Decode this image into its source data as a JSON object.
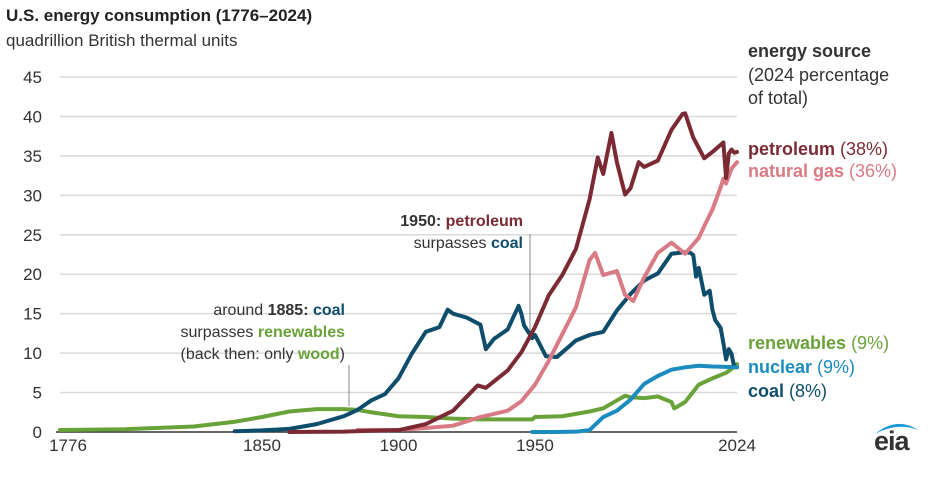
{
  "title": "U.S. energy consumption (1776–2024)",
  "subtitle": "quadrillion British thermal units",
  "legend": {
    "heading": "energy source",
    "note1": "(2024 percentage",
    "note2": "of total)"
  },
  "annotations": {
    "a1885": {
      "year": "around",
      "year_b": "1885:",
      "coal": "coal",
      "line2a": "surpasses",
      "renew": "renewables",
      "line3a": "(back then: only",
      "wood": "wood",
      "line3b": ")"
    },
    "a1950": {
      "year": "1950:",
      "pet": "petroleum",
      "line2a": "surpasses",
      "coal": "coal"
    }
  },
  "logo": "eia",
  "chart_data": {
    "type": "line",
    "title": "U.S. energy consumption (1776–2024)",
    "ylabel": "quadrillion British thermal units",
    "xlim": [
      1776,
      2024
    ],
    "ylim": [
      0,
      45
    ],
    "xticks": [
      1776,
      1850,
      1900,
      1950,
      2024
    ],
    "yticks": [
      0,
      5,
      10,
      15,
      20,
      25,
      30,
      35,
      40,
      45
    ],
    "series": [
      {
        "name": "renewables",
        "pct": "(9%)",
        "color": "#6aa23a",
        "points": [
          [
            1776,
            0.25
          ],
          [
            1800,
            0.35
          ],
          [
            1825,
            0.7
          ],
          [
            1840,
            1.3
          ],
          [
            1850,
            1.9
          ],
          [
            1860,
            2.6
          ],
          [
            1870,
            2.9
          ],
          [
            1880,
            2.9
          ],
          [
            1885,
            2.8
          ],
          [
            1890,
            2.5
          ],
          [
            1900,
            2.0
          ],
          [
            1910,
            1.9
          ],
          [
            1920,
            1.7
          ],
          [
            1930,
            1.6
          ],
          [
            1945,
            1.6
          ],
          [
            1949,
            1.6
          ],
          [
            1950,
            1.9
          ],
          [
            1960,
            2.0
          ],
          [
            1970,
            2.6
          ],
          [
            1975,
            3.0
          ],
          [
            1980,
            4.0
          ],
          [
            1983,
            4.6
          ],
          [
            1985,
            4.4
          ],
          [
            1990,
            4.3
          ],
          [
            1995,
            4.5
          ],
          [
            2000,
            3.8
          ],
          [
            2001,
            3.0
          ],
          [
            2005,
            3.8
          ],
          [
            2010,
            6.0
          ],
          [
            2015,
            6.8
          ],
          [
            2020,
            7.5
          ],
          [
            2022,
            8.0
          ],
          [
            2024,
            8.6
          ]
        ]
      },
      {
        "name": "coal",
        "pct": "(8%)",
        "color": "#0e4d6b",
        "points": [
          [
            1840,
            0.1
          ],
          [
            1850,
            0.2
          ],
          [
            1860,
            0.4
          ],
          [
            1870,
            1.0
          ],
          [
            1880,
            2.0
          ],
          [
            1885,
            2.8
          ],
          [
            1890,
            4.0
          ],
          [
            1895,
            4.8
          ],
          [
            1900,
            6.8
          ],
          [
            1905,
            10
          ],
          [
            1910,
            12.7
          ],
          [
            1915,
            13.3
          ],
          [
            1918,
            15.5
          ],
          [
            1920,
            15.0
          ],
          [
            1925,
            14.5
          ],
          [
            1930,
            13.6
          ],
          [
            1932,
            10.5
          ],
          [
            1935,
            11.8
          ],
          [
            1940,
            13
          ],
          [
            1944,
            16
          ],
          [
            1945,
            15.0
          ],
          [
            1946,
            13.5
          ],
          [
            1949,
            11.9
          ],
          [
            1950,
            12.3
          ],
          [
            1954,
            9.6
          ],
          [
            1958,
            9.5
          ],
          [
            1960,
            10.1
          ],
          [
            1965,
            11.6
          ],
          [
            1970,
            12.3
          ],
          [
            1975,
            12.7
          ],
          [
            1980,
            15.4
          ],
          [
            1985,
            17.5
          ],
          [
            1990,
            19.2
          ],
          [
            1995,
            20.1
          ],
          [
            2000,
            22.6
          ],
          [
            2005,
            22.8
          ],
          [
            2007,
            22.7
          ],
          [
            2008,
            22.4
          ],
          [
            2009,
            19.7
          ],
          [
            2010,
            20.8
          ],
          [
            2012,
            17.4
          ],
          [
            2014,
            17.9
          ],
          [
            2015,
            15.5
          ],
          [
            2016,
            14.2
          ],
          [
            2018,
            13.2
          ],
          [
            2019,
            11.3
          ],
          [
            2020,
            9.2
          ],
          [
            2021,
            10.5
          ],
          [
            2022,
            9.9
          ],
          [
            2023,
            8.2
          ],
          [
            2024,
            8.2
          ]
        ]
      },
      {
        "name": "petroleum",
        "pct": "(38%)",
        "color": "#7b2a33",
        "points": [
          [
            1860,
            0
          ],
          [
            1880,
            0.05
          ],
          [
            1890,
            0.16
          ],
          [
            1900,
            0.23
          ],
          [
            1910,
            1.0
          ],
          [
            1920,
            2.7
          ],
          [
            1929,
            5.9
          ],
          [
            1932,
            5.6
          ],
          [
            1940,
            7.8
          ],
          [
            1945,
            10.1
          ],
          [
            1950,
            13.3
          ],
          [
            1955,
            17.3
          ],
          [
            1960,
            19.9
          ],
          [
            1965,
            23.2
          ],
          [
            1970,
            29.5
          ],
          [
            1973,
            34.8
          ],
          [
            1975,
            32.7
          ],
          [
            1978,
            37.9
          ],
          [
            1980,
            34.2
          ],
          [
            1983,
            30.1
          ],
          [
            1985,
            30.9
          ],
          [
            1988,
            34.2
          ],
          [
            1990,
            33.6
          ],
          [
            1995,
            34.4
          ],
          [
            2000,
            38.3
          ],
          [
            2004,
            40.3
          ],
          [
            2005,
            40.4
          ],
          [
            2008,
            37.3
          ],
          [
            2010,
            36.0
          ],
          [
            2012,
            34.7
          ],
          [
            2015,
            35.5
          ],
          [
            2019,
            36.7
          ],
          [
            2020,
            32.2
          ],
          [
            2021,
            35.3
          ],
          [
            2022,
            35.8
          ],
          [
            2023,
            35.4
          ],
          [
            2024,
            35.5
          ]
        ]
      },
      {
        "name": "natural gas",
        "pct": "(36%)",
        "color": "#d97b84",
        "points": [
          [
            1885,
            0.25
          ],
          [
            1900,
            0.25
          ],
          [
            1910,
            0.5
          ],
          [
            1920,
            0.8
          ],
          [
            1930,
            1.9
          ],
          [
            1940,
            2.7
          ],
          [
            1945,
            3.9
          ],
          [
            1950,
            6.0
          ],
          [
            1955,
            9.0
          ],
          [
            1960,
            12.4
          ],
          [
            1965,
            15.8
          ],
          [
            1970,
            21.8
          ],
          [
            1972,
            22.7
          ],
          [
            1975,
            19.9
          ],
          [
            1980,
            20.4
          ],
          [
            1983,
            17.4
          ],
          [
            1986,
            16.6
          ],
          [
            1990,
            19.6
          ],
          [
            1995,
            22.7
          ],
          [
            2000,
            24.0
          ],
          [
            2005,
            22.6
          ],
          [
            2008,
            23.8
          ],
          [
            2010,
            24.6
          ],
          [
            2012,
            26.1
          ],
          [
            2015,
            28.2
          ],
          [
            2018,
            31.0
          ],
          [
            2019,
            32.1
          ],
          [
            2020,
            31.5
          ],
          [
            2022,
            33.4
          ],
          [
            2024,
            34.2
          ]
        ]
      },
      {
        "name": "nuclear",
        "pct": "(9%)",
        "color": "#1a8cbf",
        "points": [
          [
            1949,
            0
          ],
          [
            1957,
            0
          ],
          [
            1965,
            0.04
          ],
          [
            1970,
            0.24
          ],
          [
            1975,
            1.9
          ],
          [
            1980,
            2.7
          ],
          [
            1985,
            4.1
          ],
          [
            1990,
            6.1
          ],
          [
            1995,
            7.1
          ],
          [
            2000,
            7.9
          ],
          [
            2005,
            8.2
          ],
          [
            2010,
            8.4
          ],
          [
            2015,
            8.3
          ],
          [
            2020,
            8.25
          ],
          [
            2024,
            8.2
          ]
        ]
      }
    ]
  }
}
